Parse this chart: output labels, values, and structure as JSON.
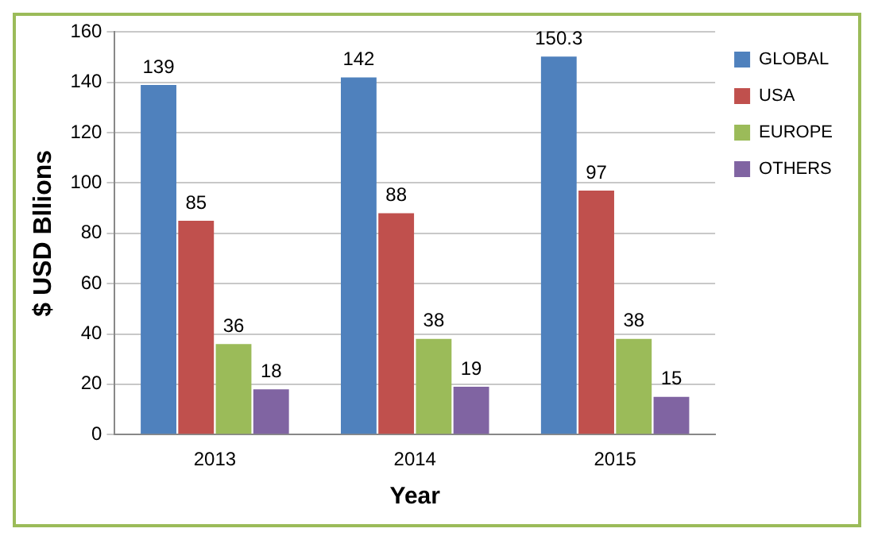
{
  "chart_data": {
    "type": "bar",
    "xlabel": "Year",
    "ylabel": "$ USD Bllions",
    "categories": [
      "2013",
      "2014",
      "2015"
    ],
    "series": [
      {
        "name": "GLOBAL",
        "color": "#4f81bd",
        "values": [
          139,
          142,
          150.3
        ]
      },
      {
        "name": "USA",
        "color": "#c0504d",
        "values": [
          85,
          88,
          97
        ]
      },
      {
        "name": "EUROPE",
        "color": "#9bbb59",
        "values": [
          36,
          38,
          38
        ]
      },
      {
        "name": "OTHERS",
        "color": "#8064a2",
        "values": [
          18,
          19,
          15
        ]
      }
    ],
    "ylim": [
      0,
      160
    ],
    "yticks": [
      0,
      20,
      40,
      60,
      80,
      100,
      120,
      140,
      160
    ],
    "grid": "y",
    "legend": "top right",
    "data_labels": true
  }
}
